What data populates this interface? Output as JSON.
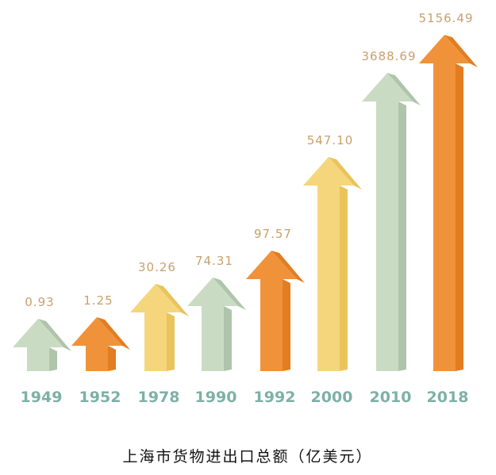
{
  "chart_data": {
    "type": "bar",
    "style": "3d-arrows",
    "title": "上海市货物进出口总额（亿美元）",
    "categories": [
      "1949",
      "1952",
      "1978",
      "1990",
      "1992",
      "2000",
      "2010",
      "2018"
    ],
    "values": [
      0.93,
      1.25,
      30.26,
      74.31,
      97.57,
      547.1,
      3688.69,
      5156.49
    ],
    "value_labels": [
      "0.93",
      "1.25",
      "30.26",
      "74.31",
      "97.57",
      "547.10",
      "3688.69",
      "5156.49"
    ],
    "bar_colors": [
      "green",
      "orange",
      "yellow",
      "green",
      "orange",
      "yellow",
      "green",
      "orange"
    ],
    "legend": "none",
    "grid": false
  },
  "colors": {
    "green": "#cadbc4",
    "green_side": "#afc5ab",
    "orange": "#f0923a",
    "orange_side": "#e27d22",
    "yellow": "#f5d67c",
    "yellow_side": "#eac35c",
    "value_label": "#c9a06b",
    "year_label": "#7eb0a6"
  }
}
